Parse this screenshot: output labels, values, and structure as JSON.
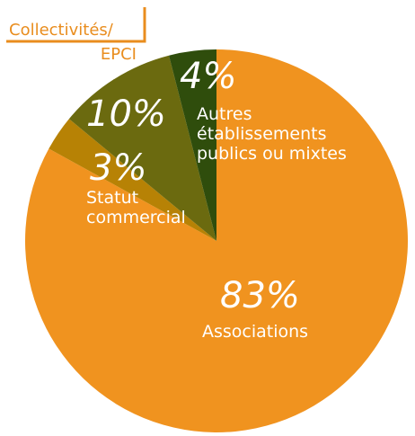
{
  "chart_data": {
    "type": "pie",
    "slices": [
      {
        "label": "Associations",
        "value": 83,
        "display": "83%",
        "color": "#f0931f"
      },
      {
        "label": "Statut commercial",
        "value": 3,
        "display": "3%",
        "color": "#b78205"
      },
      {
        "label": "Autres établissements publics ou mixtes",
        "value": 10,
        "display": "10%",
        "color": "#6b6a0f"
      },
      {
        "label": "Collectivités/ EPCI",
        "value": 4,
        "display": "4%",
        "color": "#2f4d0c"
      }
    ],
    "callout": {
      "line1": "Collectivités/",
      "line2": "EPCI",
      "color": "#e98d1e"
    },
    "legend": "none"
  }
}
